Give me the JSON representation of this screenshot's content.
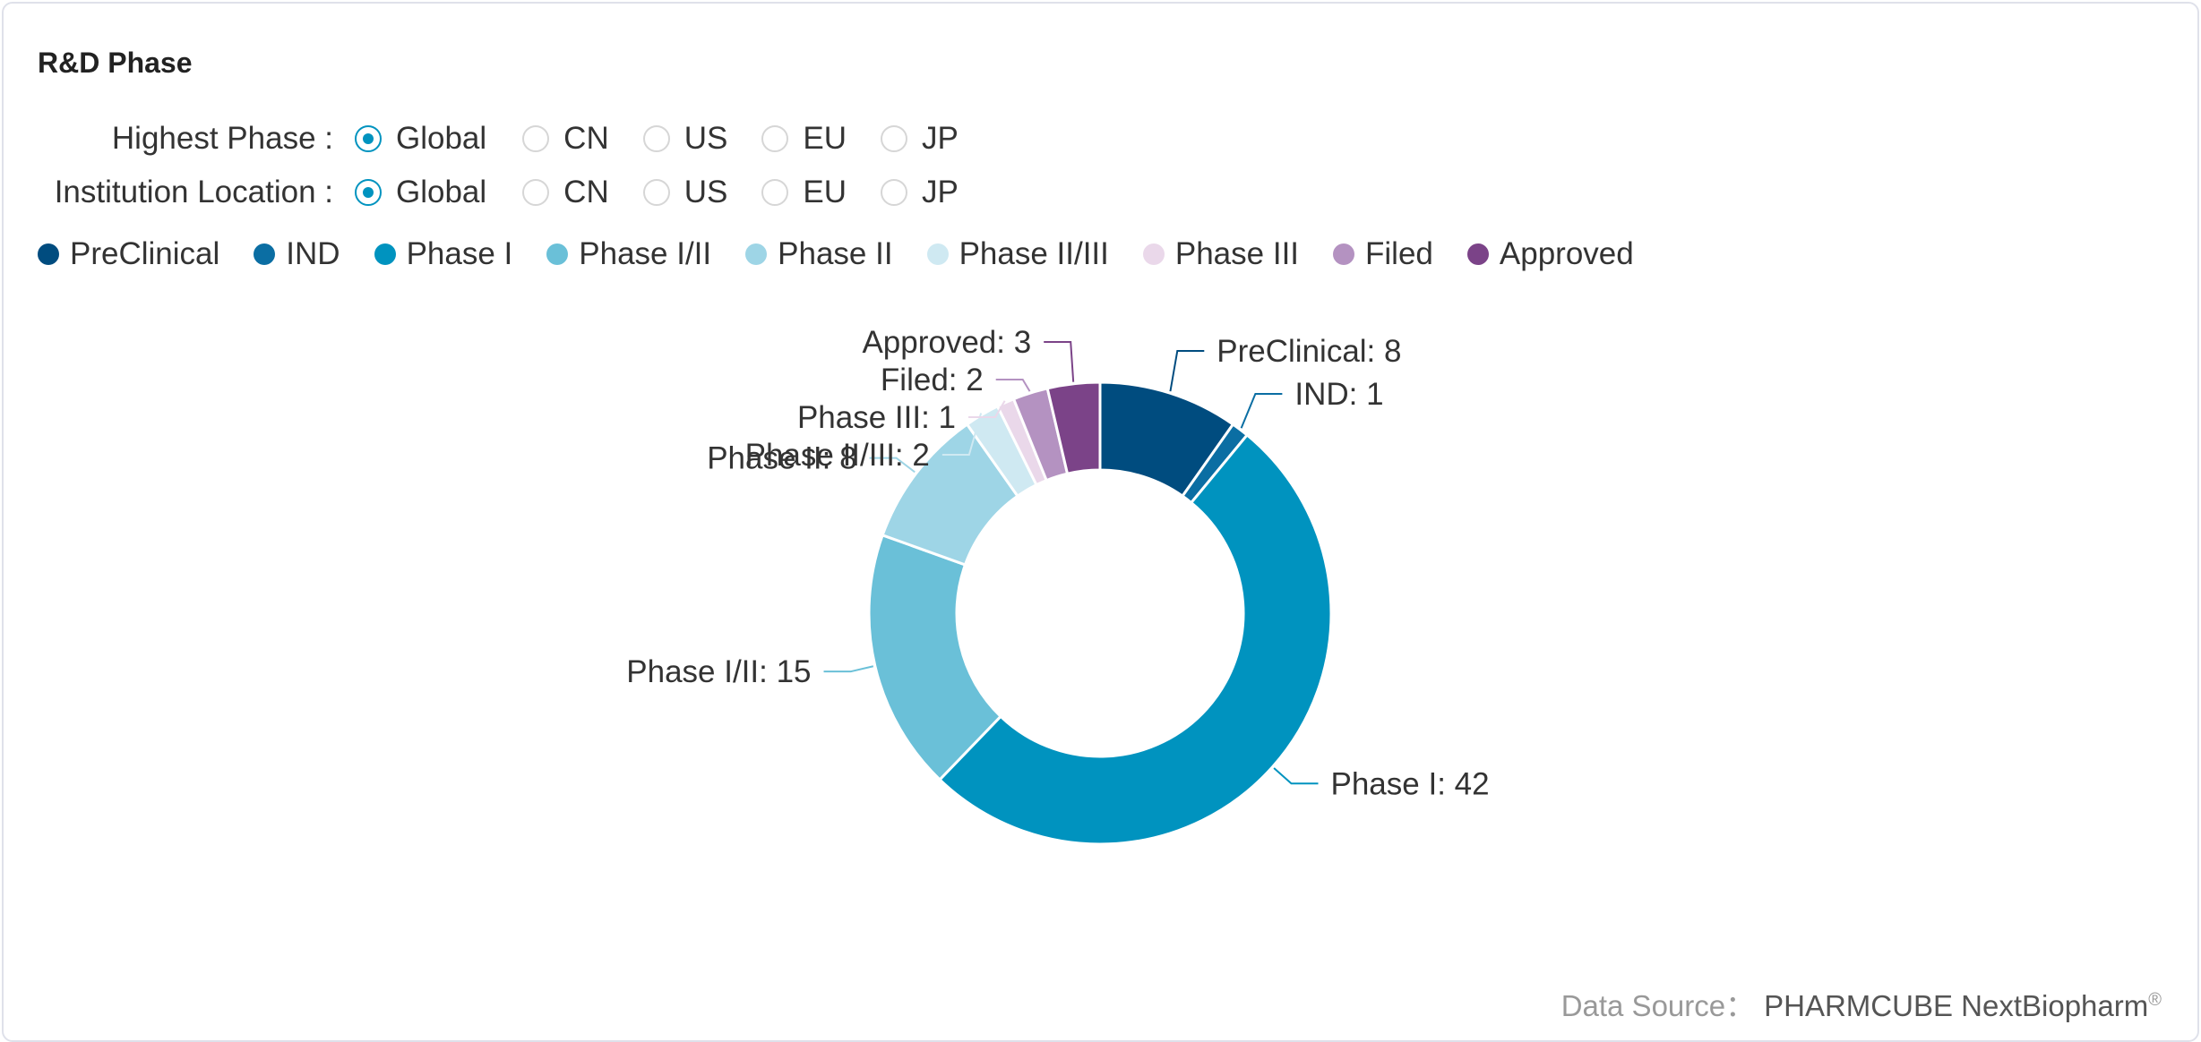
{
  "title": "R&D Phase",
  "filters": [
    {
      "label": "Highest Phase :",
      "options": [
        "Global",
        "CN",
        "US",
        "EU",
        "JP"
      ],
      "selected": "Global"
    },
    {
      "label": "Institution Location :",
      "options": [
        "Global",
        "CN",
        "US",
        "EU",
        "JP"
      ],
      "selected": "Global"
    }
  ],
  "source": {
    "label": "Data Source：",
    "brand": "PHARMCUBE NextBiopharm",
    "mark": "®"
  },
  "chart_data": {
    "type": "pie",
    "style": "donut",
    "legend_position": "top-left",
    "categories": [
      "PreClinical",
      "IND",
      "Phase I",
      "Phase I/II",
      "Phase II",
      "Phase II/III",
      "Phase III",
      "Filed",
      "Approved"
    ],
    "values": [
      8,
      1,
      42,
      15,
      8,
      2,
      1,
      2,
      3
    ],
    "colors": [
      "#004c7f",
      "#0b6ea3",
      "#0093bf",
      "#6ac0d8",
      "#9ed5e6",
      "#cfe9f2",
      "#ead8ea",
      "#b492c1",
      "#7b4388"
    ],
    "labels": [
      "PreClinical: 8",
      "IND: 1",
      "Phase I: 42",
      "Phase I/II: 15",
      "Phase II: 8",
      "Phase II/III: 2",
      "Phase III: 1",
      "Filed: 2",
      "Approved: 3"
    ]
  }
}
